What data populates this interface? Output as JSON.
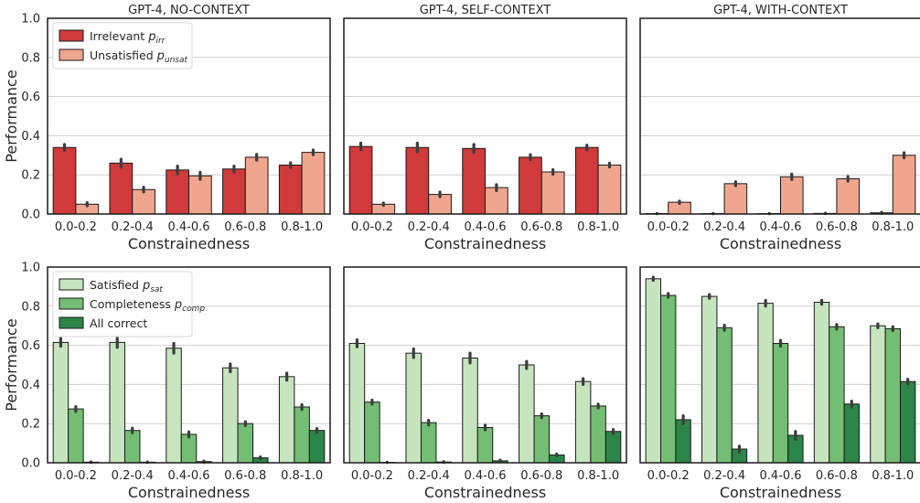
{
  "chart_data": [
    {
      "type": "bar",
      "title": "GPT-4, NO-CONTEXT",
      "xlabel": "Constrainedness",
      "ylabel": "Performance",
      "ylim": [
        0,
        1.0
      ],
      "yticks": [
        "0.0",
        "0.2",
        "0.4",
        "0.6",
        "0.8",
        "1.0"
      ],
      "categories": [
        "0.0-0.2",
        "0.2-0.4",
        "0.4-0.6",
        "0.6-0.8",
        "0.8-1.0"
      ],
      "grid": "horizontal",
      "legend": "top-left",
      "series": [
        {
          "name": "Irrelevant",
          "sub": "irr",
          "color": "#d03a3a",
          "values": [
            0.34,
            0.26,
            0.225,
            0.23,
            0.25
          ],
          "err": [
            0.015,
            0.02,
            0.02,
            0.015,
            0.012
          ]
        },
        {
          "name": "Unsatisfied",
          "sub": "unsat",
          "color": "#f0a58e",
          "values": [
            0.05,
            0.125,
            0.195,
            0.29,
            0.315
          ],
          "err": [
            0.008,
            0.012,
            0.018,
            0.015,
            0.012
          ]
        }
      ]
    },
    {
      "type": "bar",
      "title": "GPT-4, SELF-CONTEXT",
      "xlabel": "Constrainedness",
      "ylabel": "",
      "ylim": [
        0,
        1.0
      ],
      "categories": [
        "0.0-0.2",
        "0.2-0.4",
        "0.4-0.6",
        "0.6-0.8",
        "0.8-1.0"
      ],
      "series": [
        {
          "color": "#d03a3a",
          "values": [
            0.345,
            0.34,
            0.335,
            0.29,
            0.34
          ],
          "err": [
            0.017,
            0.022,
            0.02,
            0.013,
            0.012
          ]
        },
        {
          "color": "#f0a58e",
          "values": [
            0.05,
            0.1,
            0.135,
            0.215,
            0.25
          ],
          "err": [
            0.006,
            0.012,
            0.015,
            0.012,
            0.01
          ]
        }
      ]
    },
    {
      "type": "bar",
      "title": "GPT-4, WITH-CONTEXT",
      "xlabel": "Constrainedness",
      "ylabel": "",
      "ylim": [
        0,
        1.0
      ],
      "categories": [
        "0.0-0.2",
        "0.2-0.4",
        "0.4-0.6",
        "0.6-0.8",
        "0.8-1.0"
      ],
      "series": [
        {
          "color": "#d03a3a",
          "values": [
            0.002,
            0.002,
            0.002,
            0.003,
            0.006
          ],
          "err": [
            0.001,
            0.001,
            0.001,
            0.001,
            0.003
          ]
        },
        {
          "color": "#f0a58e",
          "values": [
            0.06,
            0.155,
            0.19,
            0.18,
            0.3
          ],
          "err": [
            0.006,
            0.01,
            0.014,
            0.012,
            0.013
          ]
        }
      ]
    },
    {
      "type": "bar",
      "title": "",
      "xlabel": "Constrainedness",
      "ylabel": "Performance",
      "ylim": [
        0,
        1.0
      ],
      "yticks": [
        "0.0",
        "0.2",
        "0.4",
        "0.6",
        "0.8",
        "1.0"
      ],
      "categories": [
        "0.0-0.2",
        "0.2-0.4",
        "0.4-0.6",
        "0.6-0.8",
        "0.8-1.0"
      ],
      "grid": "horizontal",
      "legend": "top-left",
      "series": [
        {
          "name": "Satisfied",
          "sub": "sat",
          "color": "#c6e5bf",
          "values": [
            0.615,
            0.615,
            0.585,
            0.485,
            0.44
          ],
          "err": [
            0.02,
            0.025,
            0.025,
            0.02,
            0.018
          ]
        },
        {
          "name": "Completeness",
          "sub": "comp",
          "color": "#74bd74",
          "values": [
            0.275,
            0.165,
            0.145,
            0.2,
            0.285
          ],
          "err": [
            0.012,
            0.012,
            0.013,
            0.01,
            0.012
          ]
        },
        {
          "name": "All correct",
          "sub": "",
          "color": "#2c8549",
          "values": [
            0.003,
            0.003,
            0.006,
            0.025,
            0.165
          ],
          "err": [
            0.001,
            0.001,
            0.003,
            0.005,
            0.01
          ]
        }
      ]
    },
    {
      "type": "bar",
      "title": "",
      "xlabel": "Constrainedness",
      "ylabel": "",
      "ylim": [
        0,
        1.0
      ],
      "categories": [
        "0.0-0.2",
        "0.2-0.4",
        "0.4-0.6",
        "0.6-0.8",
        "0.8-1.0"
      ],
      "series": [
        {
          "color": "#c6e5bf",
          "values": [
            0.61,
            0.56,
            0.535,
            0.5,
            0.415
          ],
          "err": [
            0.018,
            0.022,
            0.025,
            0.018,
            0.015
          ]
        },
        {
          "color": "#74bd74",
          "values": [
            0.31,
            0.205,
            0.18,
            0.24,
            0.29
          ],
          "err": [
            0.01,
            0.012,
            0.012,
            0.01,
            0.01
          ]
        },
        {
          "color": "#2c8549",
          "values": [
            0.002,
            0.004,
            0.01,
            0.04,
            0.16
          ],
          "err": [
            0.001,
            0.002,
            0.004,
            0.005,
            0.01
          ]
        }
      ]
    },
    {
      "type": "bar",
      "title": "",
      "xlabel": "Constrainedness",
      "ylabel": "",
      "ylim": [
        0,
        1.0
      ],
      "categories": [
        "0.0-0.2",
        "0.2-0.4",
        "0.4-0.6",
        "0.6-0.8",
        "0.8-1.0"
      ],
      "series": [
        {
          "color": "#c6e5bf",
          "values": [
            0.94,
            0.85,
            0.815,
            0.82,
            0.7
          ],
          "err": [
            0.008,
            0.01,
            0.015,
            0.01,
            0.01
          ]
        },
        {
          "color": "#74bd74",
          "values": [
            0.855,
            0.69,
            0.61,
            0.695,
            0.685
          ],
          "err": [
            0.01,
            0.013,
            0.015,
            0.012,
            0.01
          ]
        },
        {
          "color": "#2c8549",
          "values": [
            0.22,
            0.07,
            0.14,
            0.3,
            0.415
          ],
          "err": [
            0.02,
            0.015,
            0.02,
            0.015,
            0.012
          ]
        }
      ]
    }
  ]
}
